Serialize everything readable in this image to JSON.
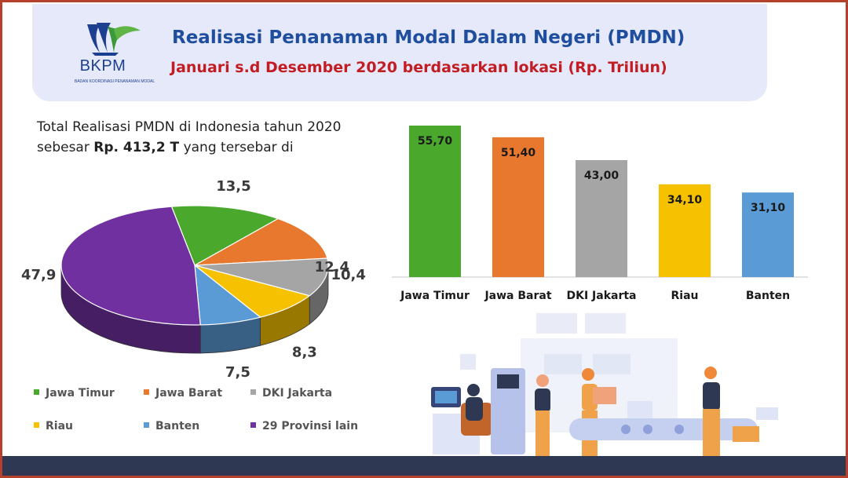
{
  "header": {
    "logo_text": "BKPM",
    "logo_subtext": "BADAN KOORDINASI PENANAMAN MODAL",
    "title": "Realisasi Penanaman Modal Dalam Negeri (PMDN)",
    "subtitle": "Januari s.d Desember 2020 berdasarkan lokasi (Rp. Triliun)"
  },
  "intro": {
    "text_before": "Total Realisasi PMDN di Indonesia tahun 2020 sebesar ",
    "highlight": "Rp. 413,2 T",
    "text_after": " yang tersebar di"
  },
  "colors": {
    "jawa_timur": "#4aa82d",
    "jawa_barat": "#e8782e",
    "dki_jakarta": "#a5a5a5",
    "riau": "#f6c200",
    "banten": "#5b9bd5",
    "provinsi_lain": "#7030a0",
    "title": "#1f4e9e",
    "subtitle": "#c21d23"
  },
  "chart_data": [
    {
      "type": "pie",
      "categories": [
        "Jawa Timur",
        "Jawa Barat",
        "DKI Jakarta",
        "Riau",
        "Banten",
        "29 Provinsi lain"
      ],
      "values": [
        13.5,
        12.4,
        10.4,
        8.3,
        7.5,
        47.9
      ],
      "value_labels": [
        "13,5",
        "12,4",
        "10,4",
        "8,3",
        "7,5",
        "47,9"
      ],
      "legend_position": "bottom"
    },
    {
      "type": "bar",
      "categories": [
        "Jawa Timur",
        "Jawa Barat",
        "DKI Jakarta",
        "Riau",
        "Banten"
      ],
      "values": [
        55.7,
        51.4,
        43.0,
        34.1,
        31.1
      ],
      "value_labels": [
        "55,70",
        "51,40",
        "43,00",
        "34,10",
        "31,10"
      ],
      "grid": false
    }
  ]
}
